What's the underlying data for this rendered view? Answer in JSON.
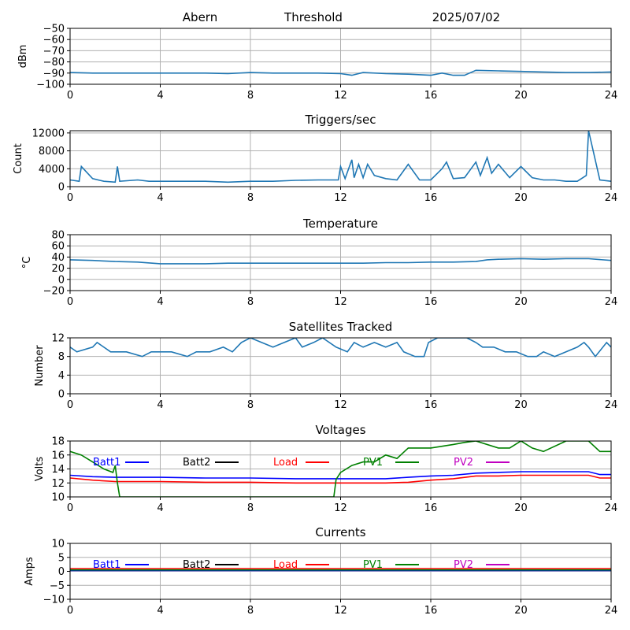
{
  "header": {
    "station": "Abern",
    "mode": "Threshold",
    "date": "2025/07/02"
  },
  "colors": {
    "series_default": "#1f77b4",
    "Batt1": "#0000ff",
    "Batt2": "#000000",
    "Load": "#ff0000",
    "PV1": "#008000",
    "PV2": "#c000c0",
    "grid": "#b0b0b0"
  },
  "chart_data": [
    {
      "id": "signal",
      "type": "line",
      "title": "",
      "xlabel": "",
      "ylabel": "dBm",
      "xlim": [
        0,
        24
      ],
      "xticks": [
        0,
        4,
        8,
        12,
        16,
        20,
        24
      ],
      "ylim": [
        -100,
        -50
      ],
      "yticks": [
        -100,
        -90,
        -80,
        -70,
        -60,
        -50
      ],
      "grid": true,
      "series": [
        {
          "color": "#1f77b4",
          "x": [
            0,
            1,
            2,
            3,
            4,
            5,
            6,
            7,
            8,
            9,
            10,
            11,
            12,
            12.5,
            13,
            14,
            15,
            16,
            16.5,
            17,
            17.5,
            18,
            19,
            20,
            21,
            22,
            23,
            24
          ],
          "y": [
            -89.5,
            -90,
            -90,
            -90,
            -90,
            -90,
            -90,
            -90.5,
            -89.5,
            -90,
            -90,
            -90,
            -90.5,
            -92,
            -89.5,
            -90.5,
            -91,
            -92,
            -90,
            -92,
            -92,
            -87.5,
            -88,
            -88.5,
            -89,
            -89.5,
            -89.5,
            -89
          ]
        }
      ]
    },
    {
      "id": "triggers",
      "type": "line",
      "title": "Triggers/sec",
      "xlabel": "",
      "ylabel": "Count",
      "xlim": [
        0,
        24
      ],
      "xticks": [
        0,
        4,
        8,
        12,
        16,
        20,
        24
      ],
      "ylim": [
        0,
        12500
      ],
      "yticks": [
        0,
        4000,
        8000,
        12000
      ],
      "grid": true,
      "series": [
        {
          "color": "#1f77b4",
          "x": [
            0,
            0.4,
            0.5,
            1,
            1.5,
            2,
            2.1,
            2.2,
            3,
            3.5,
            4,
            5,
            6,
            7,
            8,
            9,
            10,
            11,
            11.9,
            12,
            12.2,
            12.5,
            12.6,
            12.8,
            13,
            13.2,
            13.5,
            14,
            14.5,
            15,
            15.5,
            16,
            16.5,
            16.7,
            17,
            17.5,
            18,
            18.2,
            18.5,
            18.7,
            19,
            19.5,
            20,
            20.5,
            21,
            21.5,
            22,
            22.5,
            22.9,
            23,
            23.5,
            24
          ],
          "y": [
            1500,
            1200,
            4500,
            1800,
            1200,
            1000,
            4500,
            1200,
            1500,
            1200,
            1200,
            1200,
            1200,
            1000,
            1200,
            1200,
            1400,
            1500,
            1500,
            4500,
            1800,
            6000,
            2000,
            5000,
            2000,
            5000,
            2500,
            1800,
            1500,
            5000,
            1500,
            1500,
            4000,
            5500,
            1800,
            2000,
            5500,
            2500,
            6500,
            3000,
            5000,
            2000,
            4500,
            2000,
            1500,
            1500,
            1200,
            1200,
            2500,
            12500,
            1500,
            1200
          ]
        }
      ]
    },
    {
      "id": "temperature",
      "type": "line",
      "title": "Temperature",
      "xlabel": "",
      "ylabel": "°C",
      "xlim": [
        0,
        24
      ],
      "xticks": [
        0,
        4,
        8,
        12,
        16,
        20,
        24
      ],
      "ylim": [
        -20,
        80
      ],
      "yticks": [
        -20,
        0,
        20,
        40,
        60,
        80
      ],
      "grid": true,
      "series": [
        {
          "color": "#1f77b4",
          "x": [
            0,
            1,
            2,
            3,
            4,
            5,
            6,
            7,
            8,
            9,
            10,
            11,
            12,
            13,
            14,
            15,
            16,
            17,
            18,
            18.5,
            19,
            20,
            21,
            22,
            23,
            24
          ],
          "y": [
            35,
            34,
            32,
            31,
            28,
            28,
            28,
            29,
            29,
            29,
            29,
            29,
            29,
            29,
            30,
            30,
            31,
            31,
            32,
            35,
            36,
            37,
            36,
            37,
            37,
            34
          ]
        }
      ]
    },
    {
      "id": "satellites",
      "type": "line",
      "title": "Satellites Tracked",
      "xlabel": "",
      "ylabel": "Number",
      "xlim": [
        0,
        24
      ],
      "xticks": [
        0,
        4,
        8,
        12,
        16,
        20,
        24
      ],
      "ylim": [
        0,
        12
      ],
      "yticks": [
        0,
        4,
        8,
        12
      ],
      "grid": true,
      "series": [
        {
          "color": "#1f77b4",
          "x": [
            0,
            0.3,
            1,
            1.2,
            1.8,
            2.5,
            3.2,
            3.6,
            4,
            4.5,
            5.2,
            5.6,
            6.2,
            6.8,
            7.2,
            7.6,
            8,
            8.5,
            9,
            9.5,
            10,
            10.3,
            10.8,
            11.2,
            11.8,
            12.3,
            12.6,
            13,
            13.5,
            14,
            14.5,
            14.8,
            15.3,
            15.7,
            15.9,
            16.3,
            17,
            17.6,
            18,
            18.3,
            18.8,
            19.3,
            19.8,
            20.3,
            20.7,
            21,
            21.5,
            22,
            22.5,
            22.8,
            23,
            23.3,
            23.8,
            24
          ],
          "y": [
            10,
            9,
            10,
            11,
            9,
            9,
            8,
            9,
            9,
            9,
            8,
            9,
            9,
            10,
            9,
            11,
            12,
            11,
            10,
            11,
            12,
            10,
            11,
            12,
            10,
            9,
            11,
            10,
            11,
            10,
            11,
            9,
            8,
            8,
            11,
            12,
            12,
            12,
            11,
            10,
            10,
            9,
            9,
            8,
            8,
            9,
            8,
            9,
            10,
            11,
            10,
            8,
            11,
            10
          ]
        }
      ]
    },
    {
      "id": "voltages",
      "type": "line",
      "title": "Voltages",
      "xlabel": "",
      "ylabel": "Volts",
      "xlim": [
        0,
        24
      ],
      "xticks": [
        0,
        4,
        8,
        12,
        16,
        20,
        24
      ],
      "ylim": [
        10,
        18
      ],
      "yticks": [
        10,
        12,
        14,
        16,
        18
      ],
      "grid": true,
      "legend": [
        "Batt1",
        "Batt2",
        "Load",
        "PV1",
        "PV2"
      ],
      "series": [
        {
          "name": "Batt1",
          "color": "#0000ff",
          "x": [
            0,
            1,
            2,
            3,
            4,
            6,
            8,
            10,
            11,
            12,
            13,
            14,
            15,
            16,
            17,
            18,
            19,
            20,
            21,
            22,
            23,
            23.5,
            24
          ],
          "y": [
            13.1,
            12.9,
            12.8,
            12.8,
            12.8,
            12.7,
            12.7,
            12.6,
            12.6,
            12.6,
            12.6,
            12.6,
            12.8,
            13.0,
            13.1,
            13.4,
            13.5,
            13.6,
            13.6,
            13.6,
            13.6,
            13.2,
            13.2
          ]
        },
        {
          "name": "Load",
          "color": "#ff0000",
          "x": [
            0,
            1,
            2,
            3,
            4,
            6,
            8,
            10,
            11,
            12,
            13,
            14,
            15,
            16,
            17,
            18,
            19,
            20,
            21,
            22,
            23,
            23.5,
            24
          ],
          "y": [
            12.7,
            12.4,
            12.2,
            12.2,
            12.2,
            12.1,
            12.1,
            12.0,
            12.0,
            12.0,
            12.0,
            12.0,
            12.1,
            12.4,
            12.6,
            13.0,
            13.0,
            13.1,
            13.1,
            13.1,
            13.1,
            12.7,
            12.7
          ]
        },
        {
          "name": "PV1",
          "color": "#008000",
          "x": [
            0,
            0.5,
            1,
            1.5,
            1.9,
            2.0,
            2.1,
            2.2,
            11.7,
            11.8,
            12,
            12.5,
            13,
            13.5,
            14,
            14.5,
            15,
            15.5,
            16,
            17,
            17.5,
            18,
            19,
            19.5,
            20,
            20.5,
            21,
            22,
            23,
            23.5,
            24
          ],
          "y": [
            16.5,
            16,
            15,
            14,
            13.5,
            14.5,
            12,
            10,
            10,
            12.5,
            13.5,
            14.5,
            15,
            15,
            16,
            15.5,
            17,
            17,
            17,
            17.5,
            17.8,
            18,
            17,
            17,
            18,
            17,
            16.5,
            18,
            18,
            16.5,
            16.5
          ]
        }
      ]
    },
    {
      "id": "currents",
      "type": "line",
      "title": "Currents",
      "xlabel": "",
      "ylabel": "Amps",
      "xlim": [
        0,
        24
      ],
      "xticks": [
        0,
        4,
        8,
        12,
        16,
        20,
        24
      ],
      "ylim": [
        -10,
        10
      ],
      "yticks": [
        -10,
        -5,
        0,
        5,
        10
      ],
      "grid": true,
      "legend": [
        "Batt1",
        "Batt2",
        "Load",
        "PV1",
        "PV2"
      ],
      "series": [
        {
          "name": "Load",
          "color": "#ff0000",
          "x": [
            0,
            4,
            8,
            12,
            16,
            20,
            24
          ],
          "y": [
            1.0,
            1.0,
            1.0,
            1.0,
            1.0,
            1.0,
            1.0
          ]
        },
        {
          "name": "Batt1",
          "color": "#0000ff",
          "x": [
            0,
            4,
            8,
            12,
            16,
            20,
            24
          ],
          "y": [
            0.3,
            0.3,
            0.3,
            0.3,
            0.3,
            0.3,
            0.3
          ]
        },
        {
          "name": "PV1",
          "color": "#008000",
          "x": [
            0,
            4,
            8,
            12,
            16,
            20,
            24
          ],
          "y": [
            0.5,
            0.5,
            0.5,
            0.5,
            0.5,
            0.5,
            0.5
          ]
        }
      ]
    }
  ]
}
